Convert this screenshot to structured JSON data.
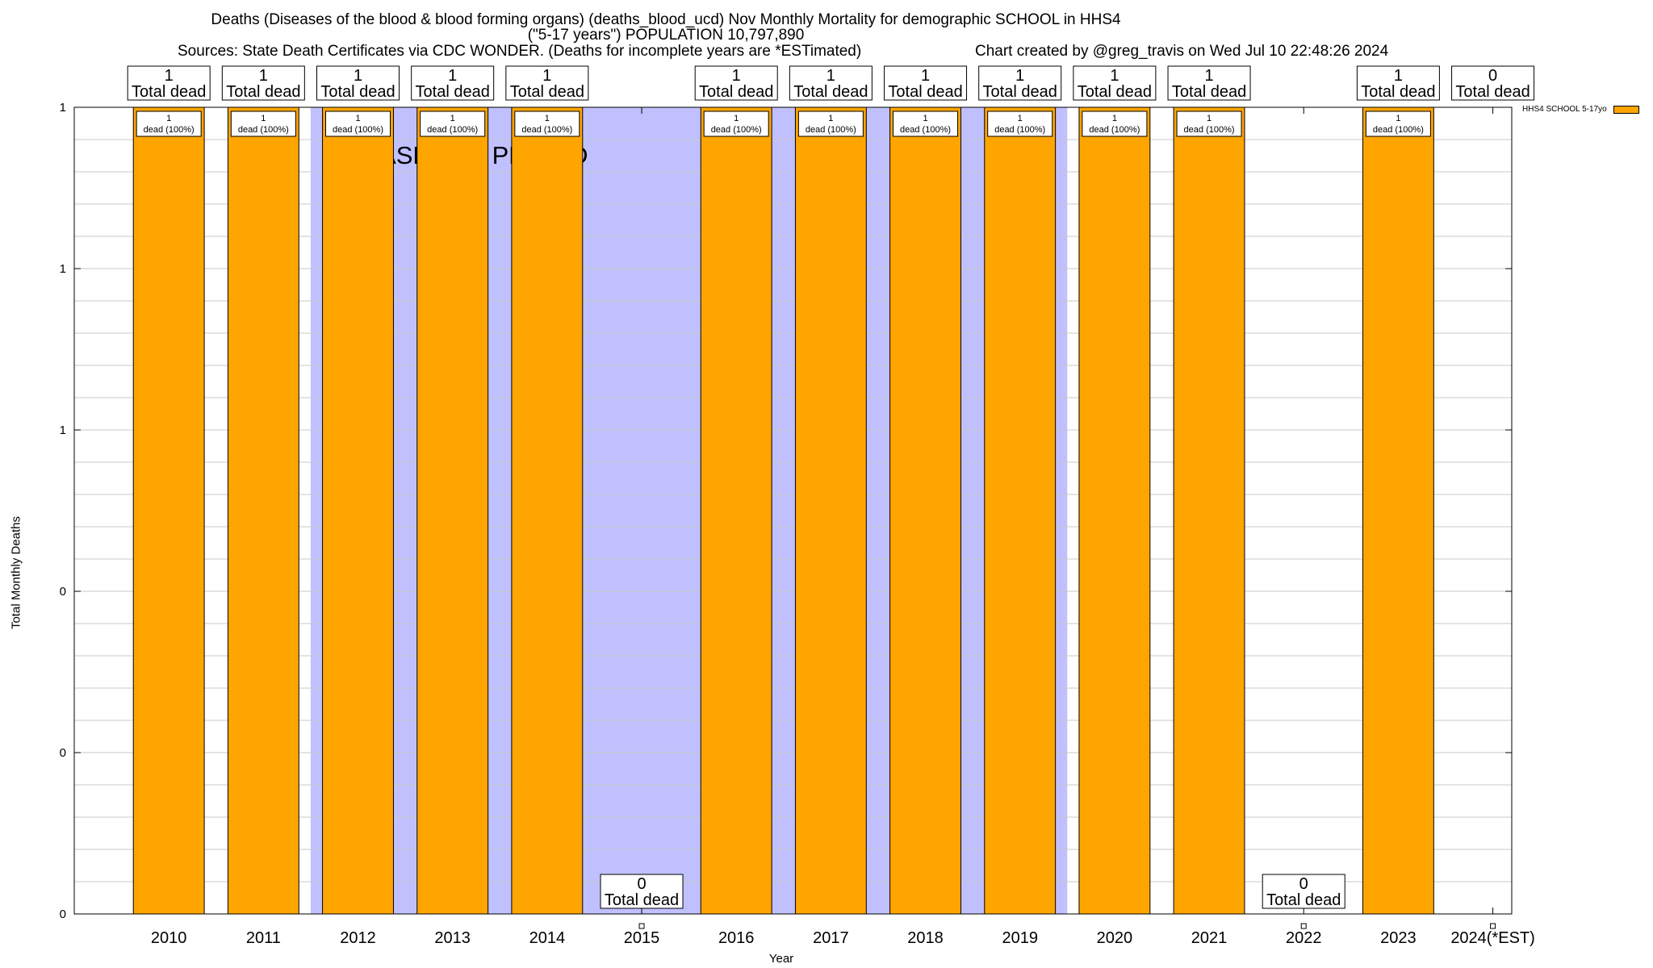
{
  "title": {
    "line1": "Deaths (Diseases of the blood & blood forming organs) (deaths_blood_ucd) Nov Monthly Mortality for demographic SCHOOL in HHS4",
    "line2": "(\"5-17 years\") POPULATION 10,797,890",
    "sources": "Sources: State Death Certificates via CDC WONDER. (Deaths for incomplete years are *ESTimated)",
    "created": "Chart created by @greg_travis on Wed Jul 10 22:48:26 2024"
  },
  "chart_data": {
    "type": "bar",
    "xlabel": "Year",
    "ylabel": "Total Monthly Deaths",
    "ylim": [
      0,
      1
    ],
    "y_tick_labels": [
      "0",
      "0",
      "0",
      "1",
      "1",
      "1"
    ],
    "categories": [
      "2010",
      "2011",
      "2012",
      "2013",
      "2014",
      "2015",
      "2016",
      "2017",
      "2018",
      "2019",
      "2020",
      "2021",
      "2022",
      "2023",
      "2024(*EST)"
    ],
    "series": [
      {
        "name": "HHS4 SCHOOL 5-17yo",
        "color": "#ffa500",
        "values": [
          1,
          1,
          1,
          1,
          1,
          0,
          1,
          1,
          1,
          1,
          1,
          1,
          0,
          1,
          0
        ]
      }
    ],
    "total_labels": [
      "1",
      "1",
      "1",
      "1",
      "1",
      "0",
      "1",
      "1",
      "1",
      "1",
      "1",
      "1",
      "0",
      "1",
      "0"
    ],
    "total_label_suffix": "Total dead",
    "bar_labels": [
      "dead (100%)",
      "dead (100%)",
      "dead (100%)",
      "dead (100%)",
      "dead (100%)",
      "",
      "dead (100%)",
      "dead (100%)",
      "dead (100%)",
      "dead (100%)",
      "dead (100%)",
      "dead (100%)",
      "",
      "dead (100%)",
      ""
    ],
    "bar_label_counts": [
      "1",
      "1",
      "1",
      "1",
      "1",
      "",
      "1",
      "1",
      "1",
      "1",
      "1",
      "1",
      "",
      "1",
      ""
    ],
    "baseline": {
      "label": "BASELINE PERIOD",
      "start_year": "2012",
      "end_year": "2019",
      "color": "#c0c0ff"
    },
    "grid": true,
    "legend_position": "top-right"
  }
}
